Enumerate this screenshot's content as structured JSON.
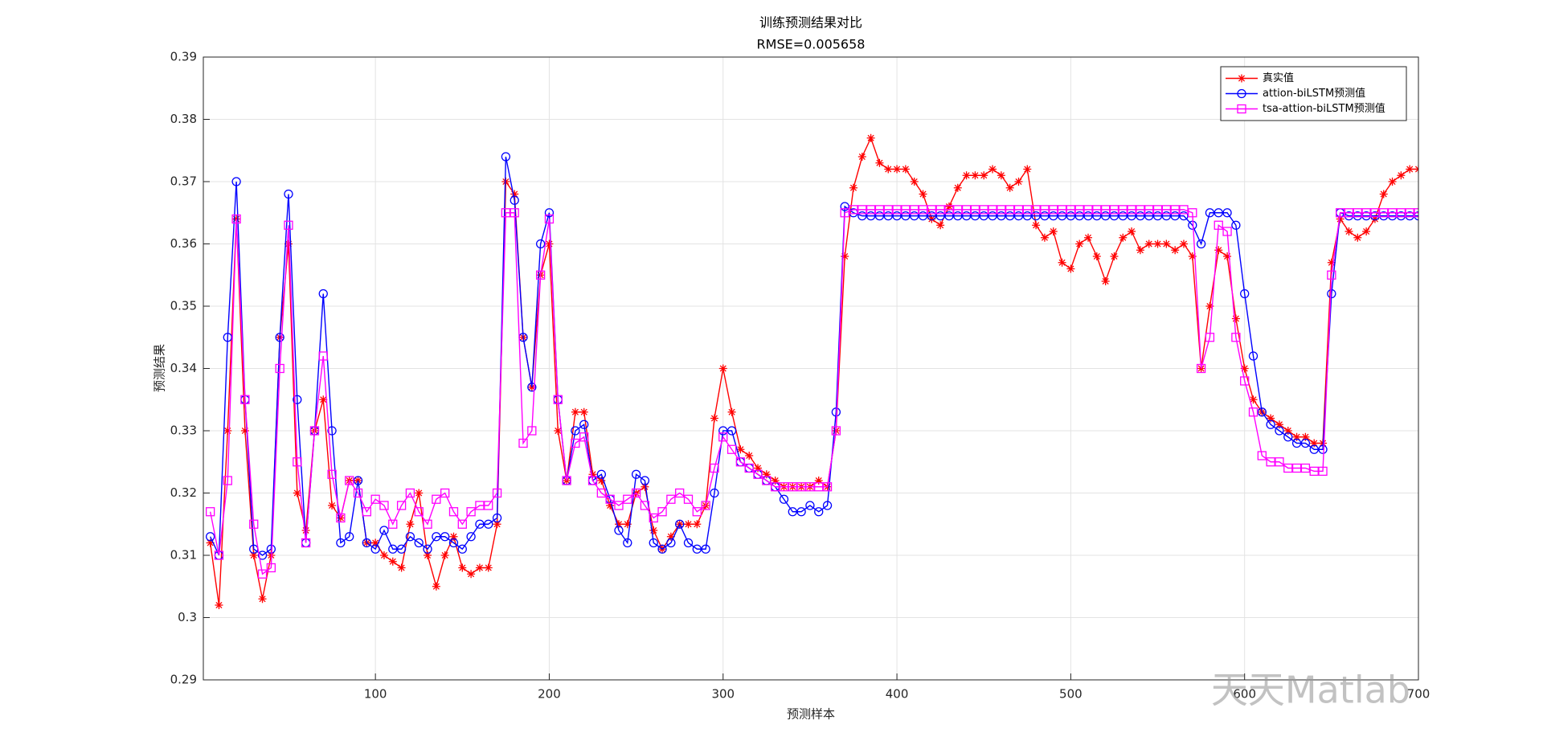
{
  "chart_data": {
    "type": "line",
    "title": "训练预测结果对比",
    "subtitle": "RMSE=0.005658",
    "x_label": "预测样本",
    "y_label": "预测结果",
    "watermark": "天天Matlab",
    "xlim": [
      1,
      700
    ],
    "xticks": [
      100,
      200,
      300,
      400,
      500,
      600,
      700
    ],
    "ylim": [
      0.29,
      0.39
    ],
    "yticks": [
      0.29,
      0.3,
      0.31,
      0.32,
      0.33,
      0.34,
      0.35,
      0.36,
      0.37,
      0.38,
      0.39
    ],
    "grid": true,
    "legend": "northeast",
    "x": [
      5,
      10,
      15,
      20,
      25,
      30,
      35,
      40,
      45,
      50,
      55,
      60,
      65,
      70,
      75,
      80,
      85,
      90,
      95,
      100,
      105,
      110,
      115,
      120,
      125,
      130,
      135,
      140,
      145,
      150,
      155,
      160,
      165,
      170,
      175,
      180,
      185,
      190,
      195,
      200,
      205,
      210,
      215,
      220,
      225,
      230,
      235,
      240,
      245,
      250,
      255,
      260,
      265,
      270,
      275,
      280,
      285,
      290,
      295,
      300,
      305,
      310,
      315,
      320,
      325,
      330,
      335,
      340,
      345,
      350,
      355,
      360,
      365,
      370,
      375,
      380,
      385,
      390,
      395,
      400,
      405,
      410,
      415,
      420,
      425,
      430,
      435,
      440,
      445,
      450,
      455,
      460,
      465,
      470,
      475,
      480,
      485,
      490,
      495,
      500,
      505,
      510,
      515,
      520,
      525,
      530,
      535,
      540,
      545,
      550,
      555,
      560,
      565,
      570,
      575,
      580,
      585,
      590,
      595,
      600,
      605,
      610,
      615,
      620,
      625,
      630,
      635,
      640,
      645,
      650,
      655,
      660,
      665,
      670,
      675,
      680,
      685,
      690,
      695,
      700
    ],
    "series": [
      {
        "name": "真实值",
        "color": "#ff0000",
        "marker": "asterisk",
        "values": [
          0.312,
          0.302,
          0.33,
          0.364,
          0.33,
          0.31,
          0.303,
          0.31,
          0.345,
          0.36,
          0.32,
          0.314,
          0.33,
          0.335,
          0.318,
          0.316,
          0.322,
          0.322,
          0.312,
          0.312,
          0.31,
          0.309,
          0.308,
          0.315,
          0.32,
          0.31,
          0.305,
          0.31,
          0.313,
          0.308,
          0.307,
          0.308,
          0.308,
          0.315,
          0.37,
          0.368,
          0.345,
          0.337,
          0.355,
          0.36,
          0.33,
          0.322,
          0.333,
          0.333,
          0.323,
          0.322,
          0.318,
          0.315,
          0.315,
          0.32,
          0.321,
          0.314,
          0.311,
          0.313,
          0.315,
          0.315,
          0.315,
          0.318,
          0.332,
          0.34,
          0.333,
          0.327,
          0.326,
          0.324,
          0.323,
          0.322,
          0.321,
          0.321,
          0.321,
          0.321,
          0.322,
          0.321,
          0.33,
          0.358,
          0.369,
          0.374,
          0.377,
          0.373,
          0.372,
          0.372,
          0.372,
          0.37,
          0.368,
          0.364,
          0.363,
          0.366,
          0.369,
          0.371,
          0.371,
          0.371,
          0.372,
          0.371,
          0.369,
          0.37,
          0.372,
          0.363,
          0.361,
          0.362,
          0.357,
          0.356,
          0.36,
          0.361,
          0.358,
          0.354,
          0.358,
          0.361,
          0.362,
          0.359,
          0.36,
          0.36,
          0.36,
          0.359,
          0.36,
          0.358,
          0.34,
          0.35,
          0.359,
          0.358,
          0.348,
          0.34,
          0.335,
          0.333,
          0.332,
          0.331,
          0.33,
          0.329,
          0.329,
          0.328,
          0.328,
          0.357,
          0.364,
          0.362,
          0.361,
          0.362,
          0.364,
          0.368,
          0.37,
          0.371,
          0.372,
          0.372
        ]
      },
      {
        "name": "attion-biLSTM预测值",
        "color": "#0000ff",
        "marker": "circle",
        "values": [
          0.313,
          0.31,
          0.345,
          0.37,
          0.335,
          0.311,
          0.31,
          0.311,
          0.345,
          0.368,
          0.335,
          0.312,
          0.33,
          0.352,
          0.33,
          0.312,
          0.313,
          0.322,
          0.312,
          0.311,
          0.314,
          0.311,
          0.311,
          0.313,
          0.312,
          0.311,
          0.313,
          0.313,
          0.312,
          0.311,
          0.313,
          0.315,
          0.315,
          0.316,
          0.374,
          0.367,
          0.345,
          0.337,
          0.36,
          0.365,
          0.335,
          0.322,
          0.33,
          0.331,
          0.322,
          0.323,
          0.319,
          0.314,
          0.312,
          0.323,
          0.322,
          0.312,
          0.311,
          0.312,
          0.315,
          0.312,
          0.311,
          0.311,
          0.32,
          0.33,
          0.33,
          0.325,
          0.324,
          0.323,
          0.322,
          0.321,
          0.319,
          0.317,
          0.317,
          0.318,
          0.317,
          0.318,
          0.333,
          0.366,
          0.365,
          0.3645,
          0.3645,
          0.3645,
          0.3645,
          0.3645,
          0.3645,
          0.3645,
          0.3645,
          0.3645,
          0.3645,
          0.3645,
          0.3645,
          0.3645,
          0.3645,
          0.3645,
          0.3645,
          0.3645,
          0.3645,
          0.3645,
          0.3645,
          0.3645,
          0.3645,
          0.3645,
          0.3645,
          0.3645,
          0.3645,
          0.3645,
          0.3645,
          0.3645,
          0.3645,
          0.3645,
          0.3645,
          0.3645,
          0.3645,
          0.3645,
          0.3645,
          0.3645,
          0.3645,
          0.363,
          0.36,
          0.365,
          0.365,
          0.365,
          0.363,
          0.352,
          0.342,
          0.333,
          0.331,
          0.33,
          0.329,
          0.328,
          0.328,
          0.327,
          0.327,
          0.352,
          0.365,
          0.3645,
          0.3645,
          0.3645,
          0.3645,
          0.3645,
          0.3645,
          0.3645,
          0.3645,
          0.3645
        ]
      },
      {
        "name": "tsa-attion-biLSTM预测值",
        "color": "#ff00ff",
        "marker": "square",
        "values": [
          0.317,
          0.31,
          0.322,
          0.364,
          0.335,
          0.315,
          0.307,
          0.308,
          0.34,
          0.363,
          0.325,
          0.312,
          0.33,
          0.342,
          0.323,
          0.316,
          0.322,
          0.32,
          0.317,
          0.319,
          0.318,
          0.315,
          0.318,
          0.32,
          0.317,
          0.315,
          0.319,
          0.32,
          0.317,
          0.315,
          0.317,
          0.318,
          0.318,
          0.32,
          0.365,
          0.365,
          0.328,
          0.33,
          0.355,
          0.364,
          0.335,
          0.322,
          0.328,
          0.329,
          0.322,
          0.32,
          0.319,
          0.318,
          0.319,
          0.32,
          0.318,
          0.316,
          0.317,
          0.319,
          0.32,
          0.319,
          0.317,
          0.318,
          0.324,
          0.329,
          0.327,
          0.325,
          0.324,
          0.323,
          0.322,
          0.321,
          0.321,
          0.321,
          0.321,
          0.321,
          0.321,
          0.321,
          0.33,
          0.365,
          0.3655,
          0.3655,
          0.3655,
          0.3655,
          0.3655,
          0.3655,
          0.3655,
          0.3655,
          0.3655,
          0.3655,
          0.3655,
          0.3655,
          0.3655,
          0.3655,
          0.3655,
          0.3655,
          0.3655,
          0.3655,
          0.3655,
          0.3655,
          0.3655,
          0.3655,
          0.3655,
          0.3655,
          0.3655,
          0.3655,
          0.3655,
          0.3655,
          0.3655,
          0.3655,
          0.3655,
          0.3655,
          0.3655,
          0.3655,
          0.3655,
          0.3655,
          0.3655,
          0.3655,
          0.3655,
          0.365,
          0.34,
          0.345,
          0.363,
          0.362,
          0.345,
          0.338,
          0.333,
          0.326,
          0.325,
          0.325,
          0.324,
          0.324,
          0.324,
          0.3235,
          0.3235,
          0.355,
          0.365,
          0.365,
          0.365,
          0.365,
          0.365,
          0.365,
          0.365,
          0.365,
          0.365,
          0.365
        ]
      }
    ]
  }
}
